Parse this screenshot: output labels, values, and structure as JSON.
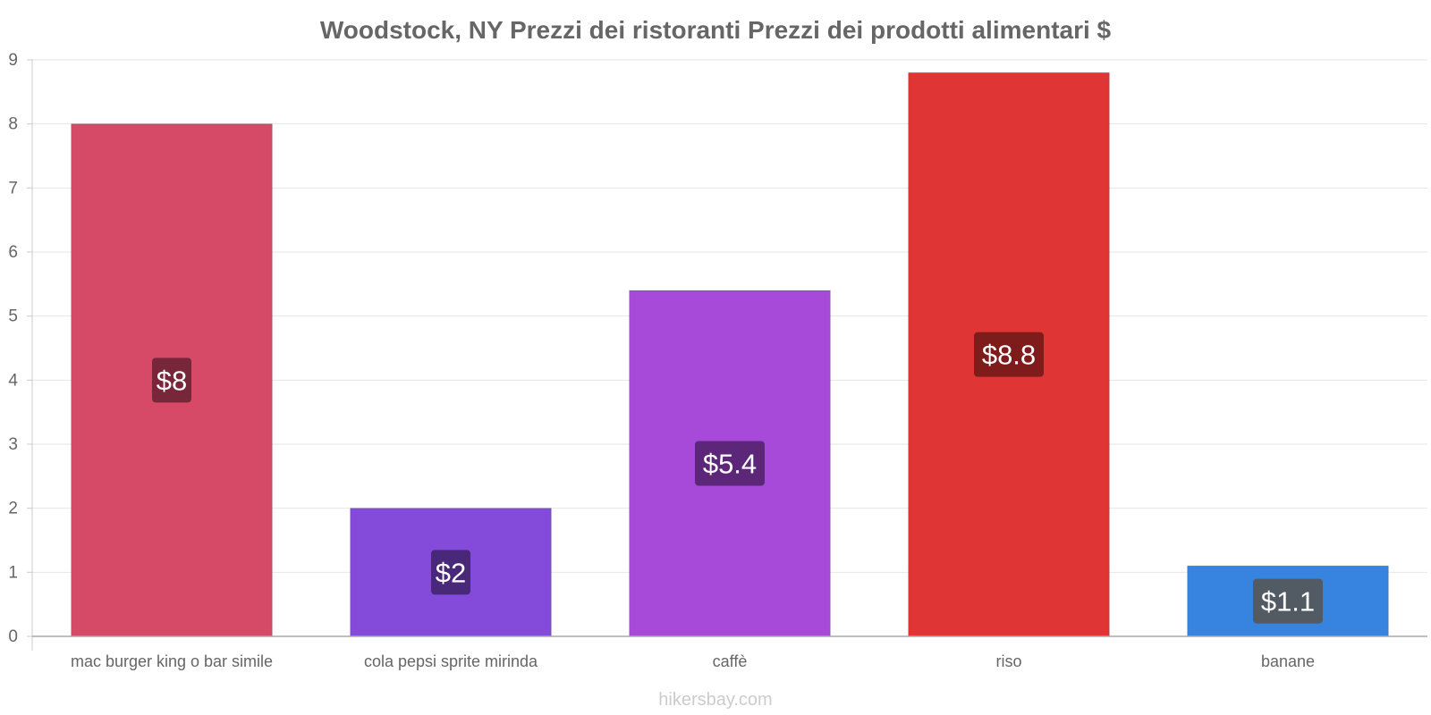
{
  "chart_data": {
    "type": "bar",
    "title": "Woodstock, NY Prezzi dei ristoranti Prezzi dei prodotti alimentari $",
    "categories": [
      "mac burger king o bar simile",
      "cola pepsi sprite mirinda",
      "caffè",
      "riso",
      "banane"
    ],
    "values": [
      8,
      2,
      5.4,
      8.8,
      1.1
    ],
    "value_labels": [
      "$8",
      "$2",
      "$5.4",
      "$8.8",
      "$1.1"
    ],
    "bar_colors": [
      "#d64a68",
      "#844bdb",
      "#a74ad9",
      "#e03535",
      "#3683e0"
    ],
    "label_box_colors": [
      "#6e2336",
      "#43236e",
      "#55236e",
      "#731919",
      "#555555"
    ],
    "xlabel": "",
    "ylabel": "",
    "ylim": [
      0,
      9
    ],
    "yticks": [
      0,
      1,
      2,
      3,
      4,
      5,
      6,
      7,
      8,
      9
    ],
    "grid": true,
    "credit": "hikersbay.com"
  }
}
